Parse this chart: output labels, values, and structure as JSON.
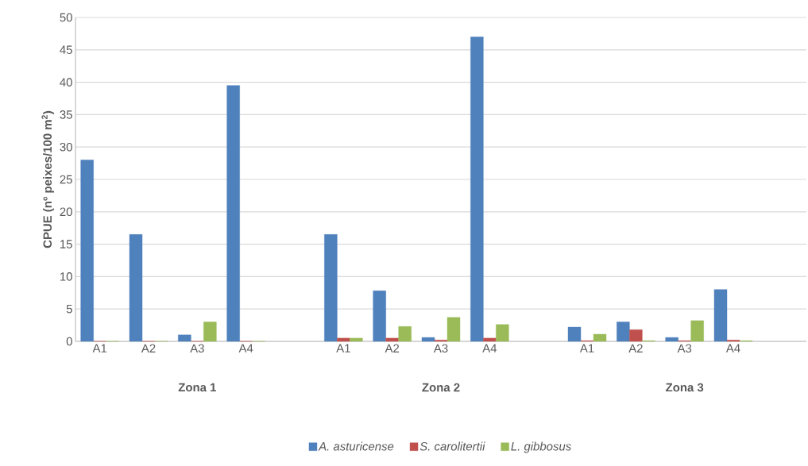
{
  "chart_data": {
    "type": "bar",
    "ylabel": "CPUE (nº peixes/100 m$^{2}$)",
    "categories": [
      "A1",
      "A2",
      "A3",
      "A4",
      null,
      "A1",
      "A2",
      "A3",
      "A4",
      null,
      "A1",
      "A2",
      "A3",
      "A4",
      null
    ],
    "series": [
      {
        "name": "A. asturicense",
        "color": "#4f81bd",
        "values": [
          28,
          16.5,
          1,
          39.5,
          null,
          16.5,
          7.8,
          0.6,
          47,
          null,
          2.2,
          3,
          0.6,
          8,
          null
        ]
      },
      {
        "name": "S. carolitertii",
        "color": "#c0504d",
        "values": [
          0,
          0,
          0,
          0,
          null,
          0.5,
          0.5,
          0.2,
          0.5,
          null,
          0.1,
          1.8,
          0.1,
          0.2,
          null
        ]
      },
      {
        "name": "L. gibbosus",
        "color": "#9bbb59",
        "values": [
          0,
          0,
          3,
          0,
          null,
          0.5,
          2.3,
          3.7,
          2.6,
          null,
          1.1,
          0.1,
          3.2,
          0.1,
          null
        ]
      }
    ],
    "annotations": [
      "Zona 1",
      "Zona 2",
      "Zona 3"
    ],
    "ylim": [
      0,
      50
    ],
    "yticks": [
      0,
      5,
      10,
      15,
      20,
      25,
      30,
      35,
      40,
      45,
      50
    ],
    "grid": "y",
    "legend": "bottom"
  }
}
